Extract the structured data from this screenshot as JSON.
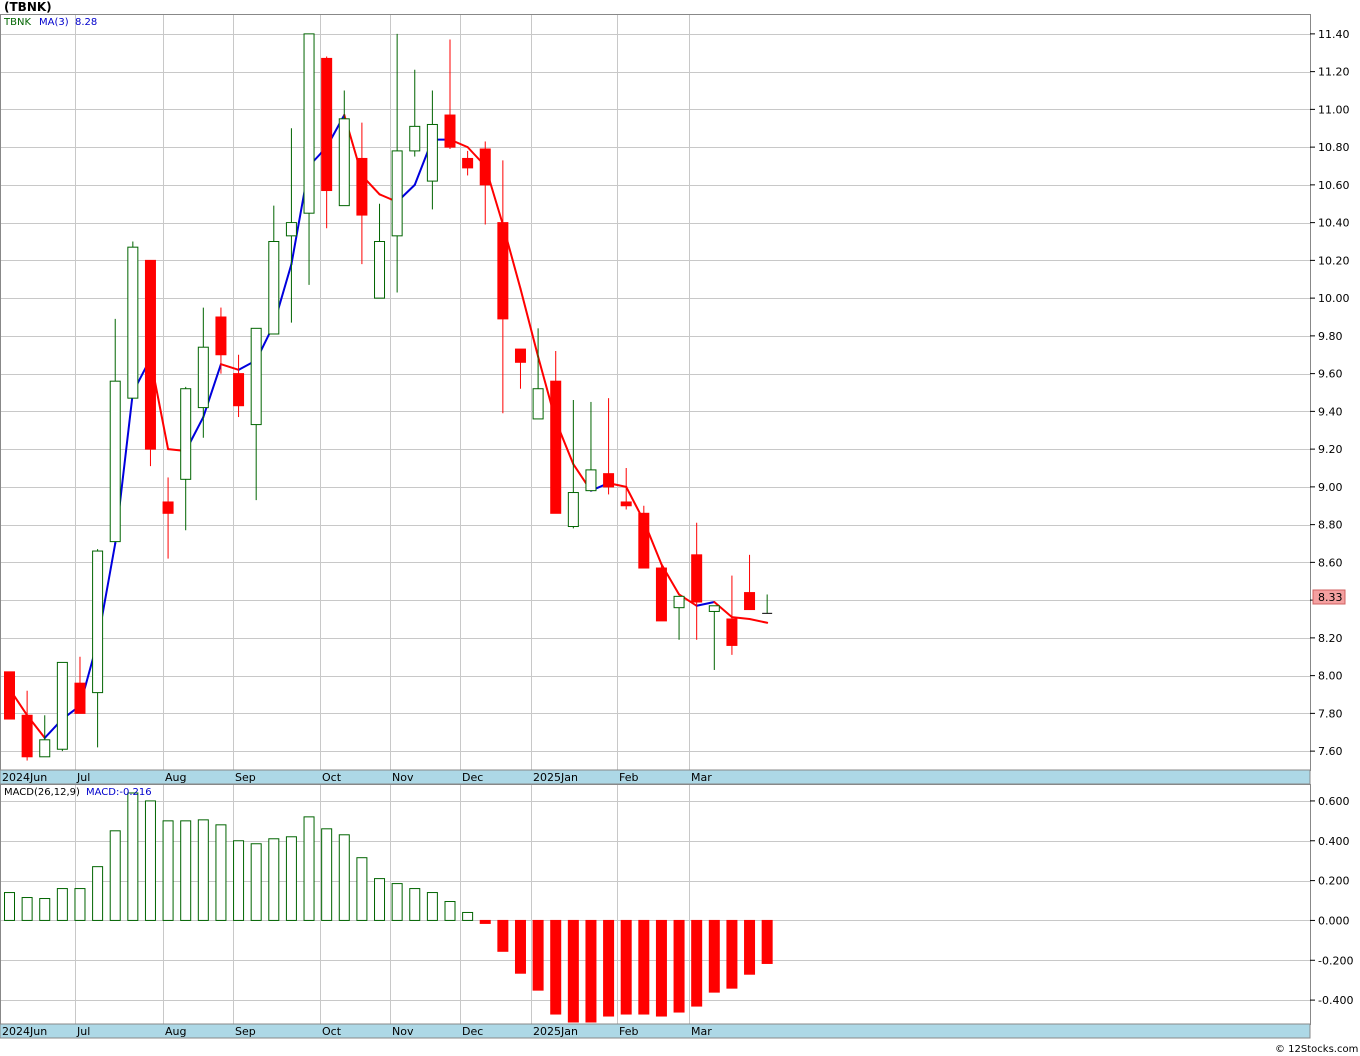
{
  "title": "(TBNK)",
  "price_panel": {
    "ticker": "TBNK",
    "ma_label": "MA(3)",
    "ma_value": "8.28",
    "last_price": "8.33",
    "y_ticks": [
      "11.40",
      "11.20",
      "11.00",
      "10.80",
      "10.60",
      "10.40",
      "10.20",
      "10.00",
      "9.80",
      "9.60",
      "9.40",
      "9.20",
      "9.00",
      "8.80",
      "8.60",
      "8.40",
      "8.20",
      "8.00",
      "7.80",
      "7.60"
    ]
  },
  "macd_panel": {
    "label": "MACD(26,12,9)",
    "value_label": "MACD:-0.216",
    "y_ticks": [
      "0.600",
      "0.400",
      "0.200",
      "0.000",
      "-0.200",
      "-0.400"
    ]
  },
  "x_axis": {
    "month_labels": [
      "2024Jun",
      "Jul",
      "Aug",
      "Sep",
      "Oct",
      "Nov",
      "Dec",
      "2025Jan",
      "Feb",
      "Mar"
    ]
  },
  "footer": {
    "credit": "© 12Stocks.com"
  },
  "colors": {
    "up": "#006400",
    "down": "#ff0000",
    "ma_up": "#0000dd",
    "ma_down": "#ff0000",
    "grid": "#c8c8c8",
    "axis_band": "#add8e6",
    "price_tag": "#f4a0a0"
  },
  "chart_data": [
    {
      "type": "candlestick",
      "title": "(TBNK)",
      "y_range": [
        7.5,
        11.5
      ],
      "x_unit": "week",
      "month_labels": [
        "2024Jun",
        "Jul",
        "Aug",
        "Sep",
        "Oct",
        "Nov",
        "Dec",
        "2025Jan",
        "Feb",
        "Mar"
      ],
      "ohlc": [
        [
          8.02,
          8.02,
          7.77,
          7.77
        ],
        [
          7.79,
          7.92,
          7.55,
          7.57
        ],
        [
          7.57,
          7.79,
          7.57,
          7.66
        ],
        [
          7.61,
          8.07,
          7.6,
          8.07
        ],
        [
          7.96,
          8.1,
          7.8,
          7.8
        ],
        [
          7.91,
          8.67,
          7.62,
          8.66
        ],
        [
          8.71,
          9.89,
          8.71,
          9.56
        ],
        [
          9.47,
          10.3,
          9.47,
          10.27
        ],
        [
          10.2,
          10.2,
          9.11,
          9.2
        ],
        [
          8.92,
          9.05,
          8.62,
          8.86
        ],
        [
          9.04,
          9.53,
          8.77,
          9.52
        ],
        [
          9.42,
          9.95,
          9.26,
          9.74
        ],
        [
          9.9,
          9.95,
          9.6,
          9.7
        ],
        [
          9.6,
          9.7,
          9.37,
          9.43
        ],
        [
          9.33,
          9.84,
          8.93,
          9.84
        ],
        [
          9.81,
          10.49,
          9.81,
          10.3
        ],
        [
          10.33,
          10.9,
          9.87,
          10.4
        ],
        [
          10.45,
          11.4,
          10.07,
          11.4
        ],
        [
          11.27,
          11.28,
          10.37,
          10.57
        ],
        [
          10.49,
          11.1,
          10.49,
          10.95
        ],
        [
          10.74,
          10.93,
          10.18,
          10.44
        ],
        [
          10.0,
          10.5,
          10.0,
          10.3
        ],
        [
          10.33,
          11.4,
          10.03,
          10.78
        ],
        [
          10.78,
          11.21,
          10.75,
          10.91
        ],
        [
          10.62,
          11.1,
          10.47,
          10.92
        ],
        [
          10.97,
          11.37,
          10.79,
          10.8
        ],
        [
          10.74,
          10.78,
          10.65,
          10.69
        ],
        [
          10.79,
          10.83,
          10.39,
          10.6
        ],
        [
          10.4,
          10.73,
          9.39,
          9.89
        ],
        [
          9.73,
          9.73,
          9.52,
          9.66
        ],
        [
          9.36,
          9.84,
          9.36,
          9.52
        ],
        [
          9.56,
          9.72,
          8.86,
          8.86
        ],
        [
          8.79,
          9.46,
          8.78,
          8.97
        ],
        [
          8.98,
          9.45,
          8.98,
          9.09
        ],
        [
          9.07,
          9.47,
          8.96,
          9.0
        ],
        [
          8.92,
          9.1,
          8.88,
          8.9
        ],
        [
          8.86,
          8.9,
          8.57,
          8.57
        ],
        [
          8.57,
          8.59,
          8.29,
          8.29
        ],
        [
          8.36,
          8.42,
          8.19,
          8.42
        ],
        [
          8.64,
          8.81,
          8.19,
          8.39
        ],
        [
          8.34,
          8.37,
          8.03,
          8.37
        ],
        [
          8.3,
          8.53,
          8.11,
          8.16
        ],
        [
          8.44,
          8.64,
          8.35,
          8.35
        ],
        [
          8.33,
          8.43,
          8.33,
          8.33
        ]
      ],
      "ma3": [
        7.93,
        7.79,
        7.67,
        7.77,
        7.84,
        8.18,
        8.7,
        9.5,
        9.68,
        9.2,
        9.19,
        9.37,
        9.65,
        9.62,
        9.67,
        9.86,
        10.18,
        10.7,
        10.8,
        10.97,
        10.65,
        10.55,
        10.51,
        10.6,
        10.84,
        10.84,
        10.8,
        10.7,
        10.39,
        10.05,
        9.69,
        9.35,
        9.12,
        8.98,
        9.02,
        9.0,
        8.82,
        8.59,
        8.43,
        8.37,
        8.39,
        8.31,
        8.3,
        8.28
      ],
      "series": [
        {
          "name": "MA(3)",
          "values_ref": "ma3"
        }
      ]
    },
    {
      "type": "bar",
      "title": "MACD(26,12,9)",
      "y_range": [
        -0.52,
        0.68
      ],
      "values": [
        0.14,
        0.115,
        0.11,
        0.16,
        0.16,
        0.27,
        0.45,
        0.64,
        0.6,
        0.5,
        0.5,
        0.505,
        0.48,
        0.4,
        0.385,
        0.41,
        0.42,
        0.52,
        0.46,
        0.43,
        0.315,
        0.21,
        0.185,
        0.16,
        0.14,
        0.095,
        0.04,
        -0.015,
        -0.155,
        -0.265,
        -0.35,
        -0.47,
        -0.51,
        -0.51,
        -0.48,
        -0.47,
        -0.47,
        -0.48,
        -0.46,
        -0.43,
        -0.36,
        -0.34,
        -0.27,
        -0.216
      ]
    }
  ]
}
